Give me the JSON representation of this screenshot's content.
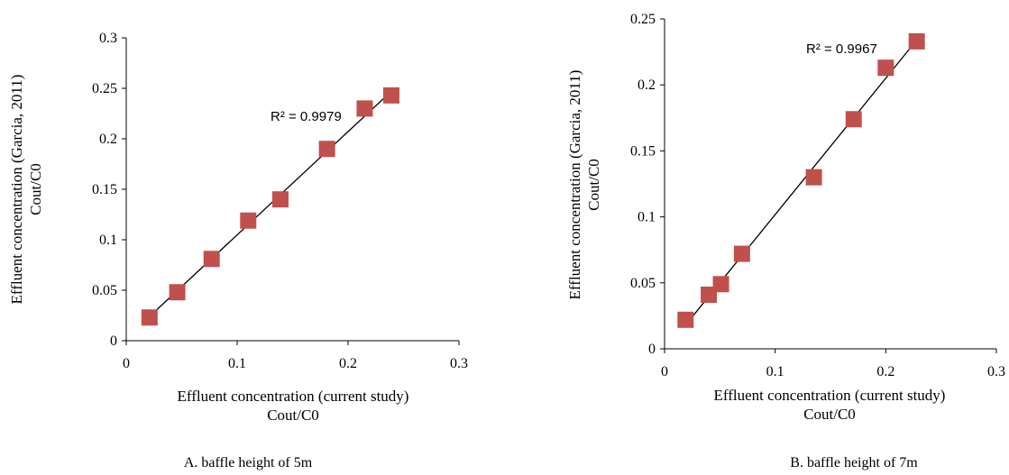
{
  "chart_data": [
    {
      "type": "scatter",
      "caption": "A. baffle height of 5m",
      "xlabel": [
        "Effluent concentration (current study)",
        "Cout/C0"
      ],
      "ylabel": [
        "Effluent concentration (Garcia, 2011)",
        "Cout/C0"
      ],
      "xlim": [
        0,
        0.3
      ],
      "ylim": [
        0,
        0.3
      ],
      "xticks": [
        0,
        0.1,
        0.2,
        0.3
      ],
      "xtick_labels": [
        "0",
        "0.1",
        "0.2",
        "0.3"
      ],
      "yticks": [
        0,
        0.05,
        0.1,
        0.15,
        0.2,
        0.25,
        0.3
      ],
      "ytick_labels": [
        "0",
        "0.05",
        "0.1",
        "0.15",
        "0.2",
        "0.25",
        "0.3"
      ],
      "series": [
        {
          "x": [
            0.021,
            0.046,
            0.077,
            0.11,
            0.139,
            0.181,
            0.215,
            0.239
          ],
          "y": [
            0.023,
            0.048,
            0.081,
            0.119,
            0.14,
            0.19,
            0.23,
            0.243
          ],
          "marker": "square",
          "color": "#c0504d"
        }
      ],
      "trendline": {
        "x": [
          0.021,
          0.239
        ],
        "y": [
          0.024,
          0.247
        ],
        "color": "#000000"
      },
      "r2_label": "R² = 0.9979",
      "grid": false,
      "legend": false
    },
    {
      "type": "scatter",
      "caption": "B. baffle height of 7m",
      "xlabel": [
        "Effluent concentration (current study)",
        "Cout/C0"
      ],
      "ylabel": [
        "Effluent concentration (Garcia, 2011)",
        "Cout/C0"
      ],
      "xlim": [
        0,
        0.3
      ],
      "ylim": [
        0,
        0.25
      ],
      "xticks": [
        0,
        0.1,
        0.2,
        0.3
      ],
      "xtick_labels": [
        "0",
        "0.1",
        "0.2",
        "0.3"
      ],
      "yticks": [
        0,
        0.05,
        0.1,
        0.15,
        0.2,
        0.25
      ],
      "ytick_labels": [
        "0",
        "0.05",
        "0.1",
        "0.15",
        "0.2",
        "0.25"
      ],
      "series": [
        {
          "x": [
            0.019,
            0.04,
            0.051,
            0.07,
            0.135,
            0.171,
            0.2,
            0.228
          ],
          "y": [
            0.022,
            0.041,
            0.049,
            0.072,
            0.13,
            0.174,
            0.213,
            0.233
          ],
          "marker": "square",
          "color": "#c0504d"
        }
      ],
      "trendline": {
        "x": [
          0.019,
          0.228
        ],
        "y": [
          0.018,
          0.234
        ],
        "color": "#000000"
      },
      "r2_label": "R² = 0.9967",
      "grid": false,
      "legend": false
    }
  ]
}
